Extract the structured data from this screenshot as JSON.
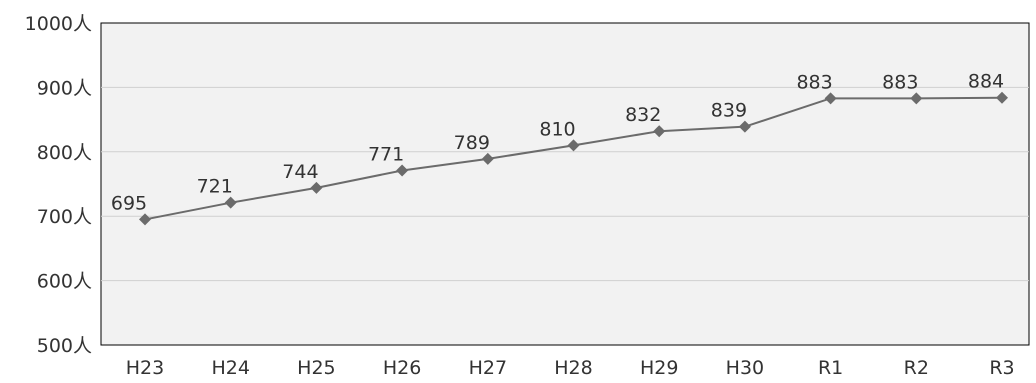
{
  "chart_data": {
    "type": "line",
    "title": "",
    "xlabel": "",
    "ylabel": "",
    "categories": [
      "H23",
      "H24",
      "H25",
      "H26",
      "H27",
      "H28",
      "H29",
      "H30",
      "R1",
      "R2",
      "R3"
    ],
    "values": [
      695,
      721,
      744,
      771,
      789,
      810,
      832,
      839,
      883,
      883,
      884
    ],
    "data_labels": [
      "695",
      "721",
      "744",
      "771",
      "789",
      "810",
      "832",
      "839",
      "883",
      "883",
      "884"
    ],
    "ylim": [
      500,
      1000
    ],
    "yticks": [
      1000,
      900,
      800,
      700,
      600,
      500
    ],
    "ytick_labels": [
      "1000人",
      "900人",
      "800人",
      "700人",
      "600人",
      "500人"
    ],
    "grid": true,
    "legend": "none",
    "colors": {
      "plot_background": "#f2f2f2",
      "line": "#6b6b6b",
      "marker": "#6b6b6b",
      "grid": "#d0d0d0",
      "axis": "#000000"
    }
  }
}
